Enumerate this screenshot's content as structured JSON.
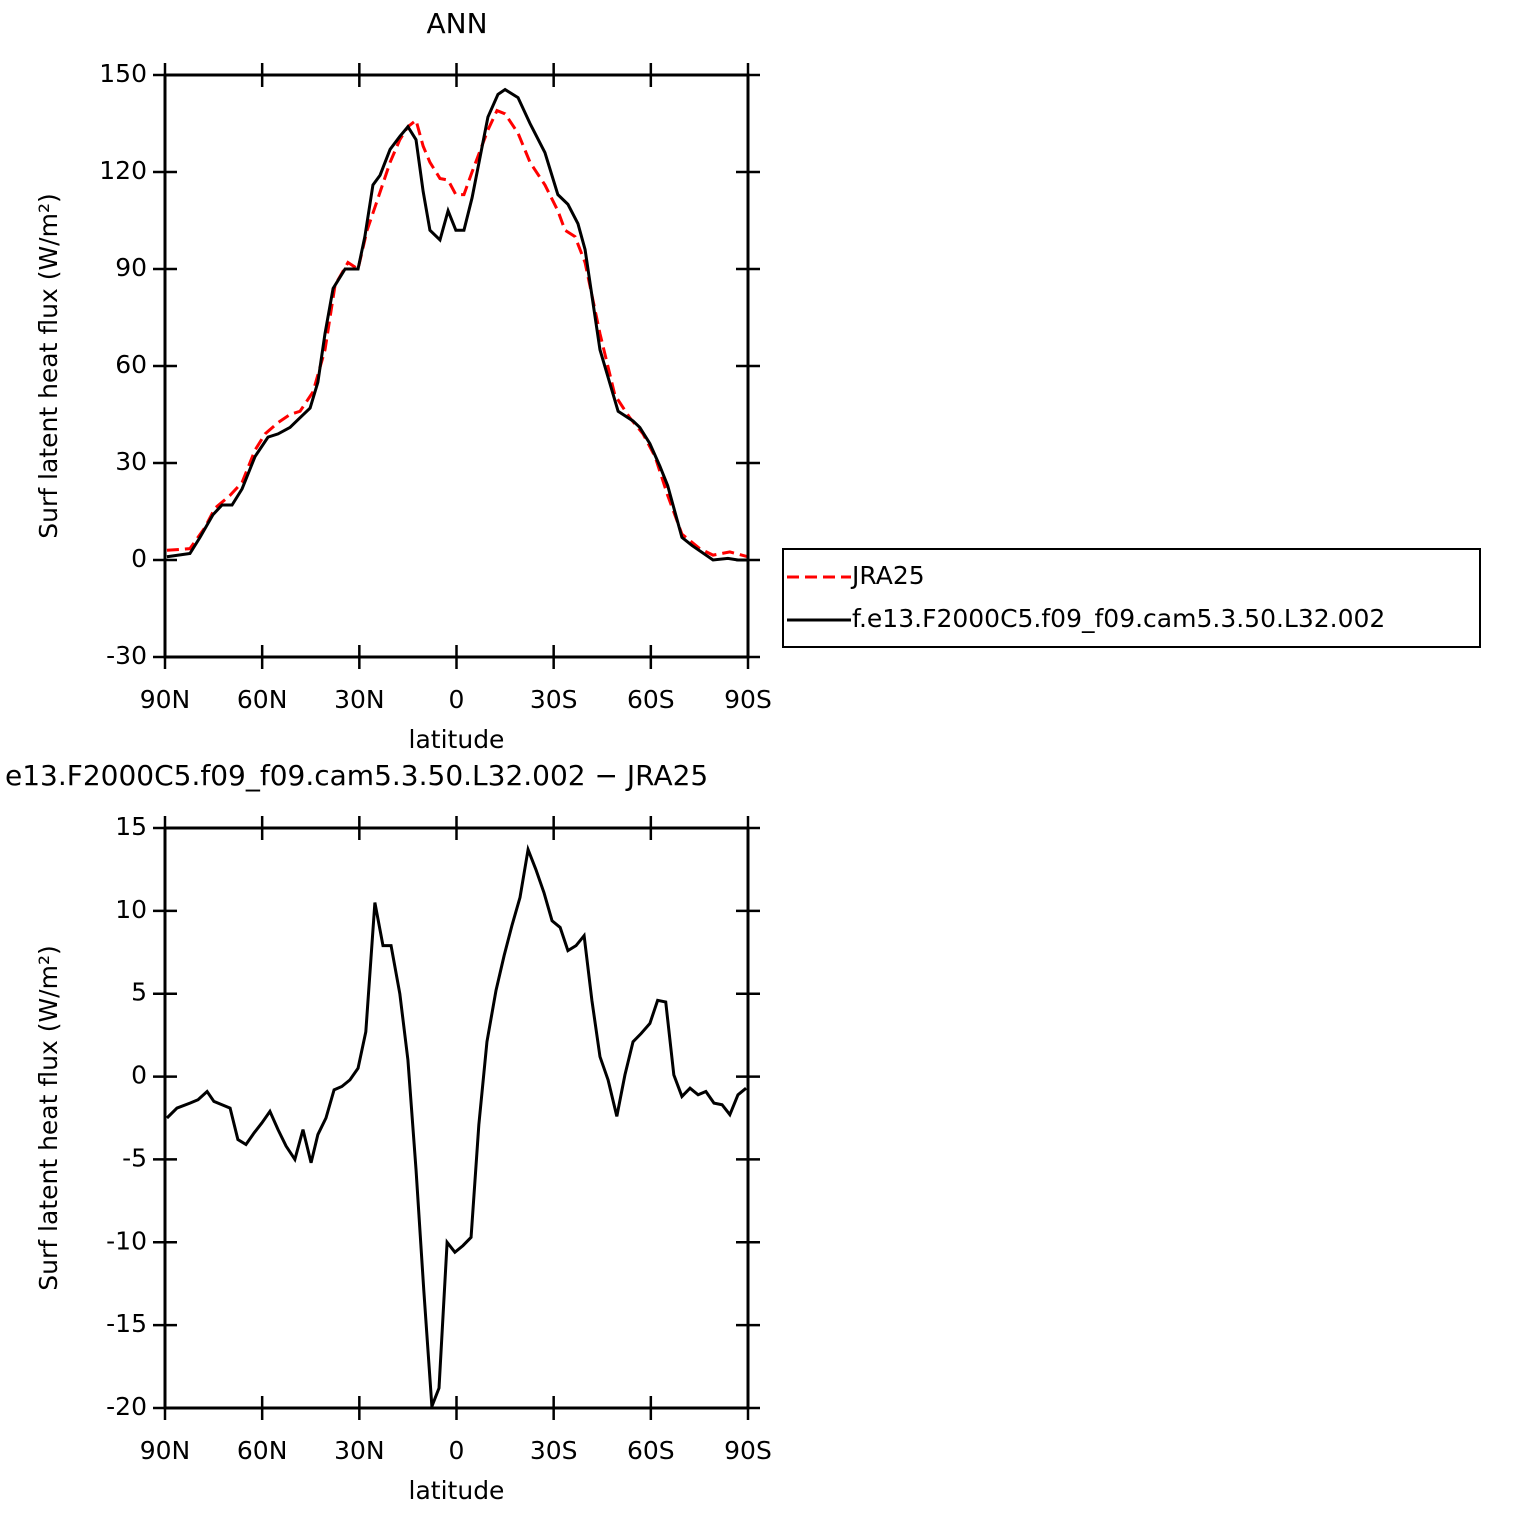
{
  "chart_data": [
    {
      "type": "line",
      "title": "ANN",
      "xlabel": "latitude",
      "ylabel": "Surf latent heat flux (W/m²)",
      "xlim": [
        90,
        -90
      ],
      "xticks": [
        {
          "value": 90,
          "label": "90N"
        },
        {
          "value": 60,
          "label": "60N"
        },
        {
          "value": 30,
          "label": "30N"
        },
        0,
        {
          "value": -30,
          "label": "30S"
        },
        {
          "value": -60,
          "label": "60S"
        },
        {
          "value": -90,
          "label": "90S"
        }
      ],
      "ylim": [
        -30,
        150
      ],
      "yticks": [
        -30,
        0,
        30,
        60,
        90,
        120,
        150
      ],
      "legend": "right",
      "series": [
        {
          "name": "JRA25",
          "color": "#ff0000",
          "style": "dashed",
          "x": [
            89.4,
            82.3,
            77.7,
            74.6,
            69.9,
            66.2,
            62.2,
            59.1,
            55.1,
            51.4,
            48.3,
            44.3,
            40.6,
            37.5,
            33.5,
            30.4,
            27.6,
            24.2,
            20.5,
            17.5,
            15.0,
            12.5,
            10.3,
            8.2,
            5.1,
            2.6,
            0.2,
            -2.3,
            -4.8,
            -9.7,
            -12.5,
            -15.0,
            -19.0,
            -22.7,
            -27.3,
            -31.3,
            -33.5,
            -36.6,
            -39.7,
            -44.3,
            -48.9,
            -53.5,
            -57.6,
            -61.3,
            -65.2,
            -69.6,
            -75.1,
            -79.2,
            -84.4,
            -90
          ],
          "values": [
            3,
            3.5,
            10,
            16,
            20,
            24,
            34,
            39,
            42.5,
            45,
            46,
            52,
            65,
            85,
            92,
            90,
            102,
            112,
            123,
            130,
            134,
            136,
            128,
            123,
            118,
            117.5,
            113,
            113,
            120,
            133,
            139,
            138,
            132,
            123,
            116,
            108,
            102,
            100,
            92,
            70,
            51,
            44,
            39,
            32,
            20,
            8,
            3.5,
            1.5,
            2.5,
            1
          ]
        },
        {
          "name": "f.e13.F2000C5.f09_f09.cam5.3.50.L32.002",
          "color": "#000000",
          "style": "solid",
          "x": [
            89.4,
            82.3,
            79.2,
            75.2,
            72.4,
            69.3,
            66.2,
            62.2,
            58.2,
            55.1,
            51.4,
            48.3,
            45.2,
            42.8,
            40.6,
            38.1,
            34.4,
            30.4,
            28.3,
            25.8,
            23.6,
            20.5,
            17.5,
            15.0,
            12.5,
            10.3,
            8.2,
            5.1,
            2.6,
            0.2,
            -2.3,
            -4.8,
            -9.7,
            -12.8,
            -15.0,
            -19.0,
            -22.7,
            -27.3,
            -31.3,
            -34.4,
            -37.5,
            -39.7,
            -44.3,
            -49.9,
            -54.5,
            -56.6,
            -59.7,
            -62.8,
            -65.2,
            -69.6,
            -72.7,
            -79.2,
            -83.8,
            -86.9,
            -90
          ],
          "values": [
            1,
            2,
            7,
            14,
            17,
            17,
            22,
            32,
            38,
            39,
            41,
            44,
            47,
            55,
            70,
            84,
            90,
            90,
            100,
            116,
            119,
            127,
            131,
            134,
            130,
            114,
            102,
            99,
            108,
            102,
            102,
            112,
            137,
            144,
            145.5,
            143,
            135,
            126,
            113,
            110,
            104,
            96,
            65,
            46,
            43,
            41,
            36,
            29,
            23,
            7,
            4.5,
            0,
            0.5,
            0,
            0
          ]
        }
      ]
    },
    {
      "type": "line",
      "title": "e13.F2000C5.f09_f09.cam5.3.50.L32.002 − JRA25",
      "xlabel": "latitude",
      "ylabel": "Surf latent heat flux (W/m²)",
      "xlim": [
        90,
        -90
      ],
      "xticks": [
        {
          "value": 90,
          "label": "90N"
        },
        {
          "value": 60,
          "label": "60N"
        },
        {
          "value": 30,
          "label": "30N"
        },
        0,
        {
          "value": -30,
          "label": "30S"
        },
        {
          "value": -60,
          "label": "60S"
        },
        {
          "value": -90,
          "label": "90S"
        }
      ],
      "ylim": [
        -20,
        15
      ],
      "yticks": [
        -20,
        -15,
        -10,
        -5,
        0,
        5,
        10,
        15
      ],
      "series": [
        {
          "color": "#000000",
          "style": "solid",
          "x": [
            89.4,
            86.3,
            82.3,
            79.8,
            77.0,
            74.9,
            72.4,
            69.9,
            67.5,
            65.0,
            62.5,
            60.1,
            57.6,
            55.1,
            52.6,
            49.9,
            47.4,
            44.9,
            42.8,
            40.3,
            37.8,
            35.4,
            32.9,
            30.4,
            28.0,
            25.2,
            22.7,
            20.2,
            17.5,
            15.0,
            12.5,
            10.1,
            7.6,
            5.4,
            2.9,
            0.5,
            -2.0,
            -4.5,
            -6.9,
            -9.4,
            -12.2,
            -14.7,
            -17.1,
            -19.6,
            -22.1,
            -24.5,
            -27.0,
            -29.5,
            -32.0,
            -34.4,
            -36.9,
            -39.4,
            -41.8,
            -44.3,
            -46.8,
            -49.5,
            -52.0,
            -54.5,
            -57.0,
            -59.7,
            -62.1,
            -64.6,
            -67.1,
            -69.6,
            -72.1,
            -74.6,
            -77.0,
            -79.5,
            -82.0,
            -84.4,
            -86.9,
            -89.4
          ],
          "values": [
            -2.5,
            -1.9,
            -1.6,
            -1.4,
            -0.9,
            -1.5,
            -1.7,
            -1.9,
            -3.8,
            -4.1,
            -3.4,
            -2.8,
            -2.1,
            -3.2,
            -4.2,
            -5.0,
            -3.2,
            -5.2,
            -3.5,
            -2.5,
            -0.8,
            -0.6,
            -0.2,
            0.5,
            2.7,
            10.5,
            7.9,
            7.9,
            5.0,
            1.0,
            -5.6,
            -12.9,
            -19.9,
            -18.8,
            -10.0,
            -10.6,
            -10.2,
            -9.7,
            -2.9,
            2.1,
            5.2,
            7.3,
            9.1,
            10.8,
            13.7,
            12.5,
            11.1,
            9.4,
            9.0,
            7.6,
            7.9,
            8.5,
            4.6,
            1.2,
            -0.2,
            -2.4,
            0.1,
            2.1,
            2.6,
            3.2,
            4.6,
            4.5,
            0.1,
            -1.2,
            -0.7,
            -1.1,
            -0.9,
            -1.6,
            -1.7,
            -2.3,
            -1.1,
            -0.7
          ]
        }
      ]
    }
  ]
}
